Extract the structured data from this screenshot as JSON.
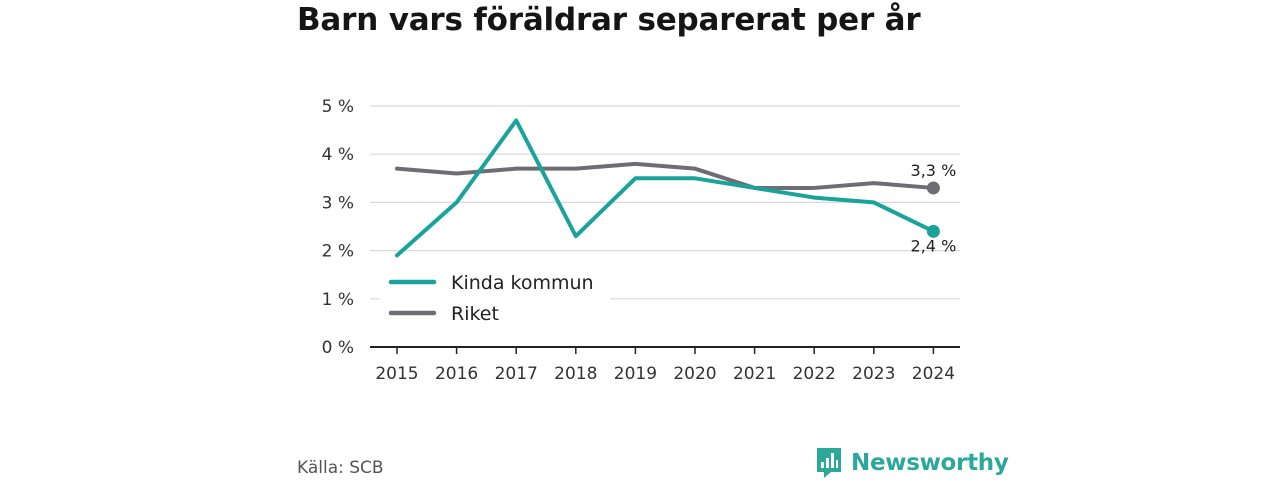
{
  "title": "Barn vars föräldrar separerat per år",
  "source": "Källa: SCB",
  "brand": "Newsworthy",
  "colors": {
    "kinda": "#1aa39a",
    "riket": "#6e6d73",
    "grid": "#d9d9d9",
    "axis": "#222222",
    "brand": "#2ca89a"
  },
  "chart_data": {
    "type": "line",
    "x": [
      "2015",
      "2016",
      "2017",
      "2018",
      "2019",
      "2020",
      "2021",
      "2022",
      "2023",
      "2024"
    ],
    "y_ticks": [
      "0 %",
      "1 %",
      "2 %",
      "3 %",
      "4 %",
      "5 %"
    ],
    "ylim": [
      0,
      5
    ],
    "grid": true,
    "legend_position": "bottom-left",
    "series": [
      {
        "name": "Kinda kommun",
        "color": "#1aa39a",
        "values": [
          1.9,
          3.0,
          4.7,
          2.3,
          3.5,
          3.5,
          3.3,
          3.1,
          3.0,
          2.4
        ],
        "end_label": "2,4 %"
      },
      {
        "name": "Riket",
        "color": "#6e6d73",
        "values": [
          3.7,
          3.6,
          3.7,
          3.7,
          3.8,
          3.7,
          3.3,
          3.3,
          3.4,
          3.3
        ],
        "end_label": "3,3 %"
      }
    ]
  }
}
